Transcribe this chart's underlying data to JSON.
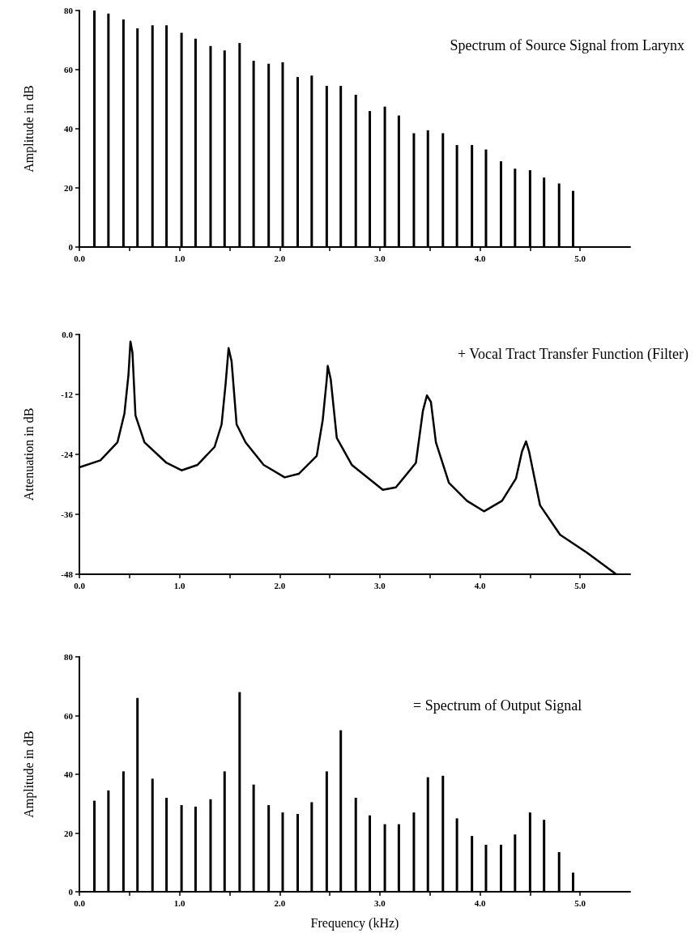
{
  "chart_data": [
    {
      "type": "bar",
      "title": "Spectrum of Source Signal from Larynx",
      "ylabel": "Amplitude in dB",
      "color": "#000000",
      "grid": false,
      "x": [
        0.15,
        0.29,
        0.44,
        0.58,
        0.73,
        0.87,
        1.02,
        1.16,
        1.31,
        1.45,
        1.6,
        1.74,
        1.89,
        2.03,
        2.18,
        2.32,
        2.47,
        2.61,
        2.76,
        2.9,
        3.05,
        3.19,
        3.34,
        3.48,
        3.63,
        3.77,
        3.92,
        4.06,
        4.21,
        4.35,
        4.5,
        4.64,
        4.79,
        4.93
      ],
      "values": [
        80,
        79,
        77,
        74,
        75,
        75,
        72.5,
        70.5,
        68,
        66.5,
        69,
        63,
        62,
        62.5,
        57.5,
        58,
        54.5,
        54.5,
        51.5,
        46,
        47.5,
        44.5,
        38.5,
        39.5,
        38.5,
        34.5,
        34.5,
        33,
        29,
        26.5,
        26,
        23.5,
        21.5,
        19
      ],
      "xlim": [
        0,
        5.5
      ],
      "xticks": [
        {
          "value": 0,
          "label": "0.0"
        },
        {
          "value": 0.5,
          "label": null
        },
        {
          "value": 1,
          "label": "1.0"
        },
        {
          "value": 1.5,
          "label": null
        },
        {
          "value": 2,
          "label": "2.0"
        },
        {
          "value": 2.5,
          "label": null
        },
        {
          "value": 3,
          "label": "3.0"
        },
        {
          "value": 3.5,
          "label": null
        },
        {
          "value": 4,
          "label": "4.0"
        },
        {
          "value": 4.5,
          "label": null
        },
        {
          "value": 5,
          "label": "5.0"
        }
      ],
      "ylim": [
        0,
        80
      ],
      "yticks": [
        0,
        20,
        40,
        60,
        80
      ]
    },
    {
      "type": "line",
      "title": "+ Vocal Tract Transfer Function (Filter)",
      "ylabel": "Attenuation in dB",
      "color": "#000000",
      "grid": false,
      "marker": "none",
      "line_style": "solid",
      "x": [
        0,
        0.21,
        0.38,
        0.45,
        0.49,
        0.51,
        0.53,
        0.56,
        0.65,
        0.87,
        1.02,
        1.18,
        1.35,
        1.42,
        1.46,
        1.49,
        1.52,
        1.57,
        1.66,
        1.84,
        2.05,
        2.19,
        2.37,
        2.43,
        2.47,
        2.48,
        2.51,
        2.57,
        2.72,
        3.03,
        3.16,
        3.36,
        3.43,
        3.47,
        3.51,
        3.56,
        3.69,
        3.87,
        4.04,
        4.22,
        4.36,
        4.42,
        4.46,
        4.49,
        4.6,
        4.8,
        5.07,
        5.36
      ],
      "values": [
        -26.6,
        -25.2,
        -21.6,
        -15.8,
        -8.1,
        -1.4,
        -3.6,
        -16.2,
        -21.6,
        -25.7,
        -27.2,
        -26.1,
        -22.5,
        -18,
        -9.9,
        -2.7,
        -5.4,
        -18,
        -21.6,
        -26.1,
        -28.6,
        -27.9,
        -24.3,
        -17.1,
        -9,
        -6.3,
        -9,
        -20.7,
        -26.1,
        -31.1,
        -30.6,
        -25.7,
        -15.3,
        -12.2,
        -13.5,
        -21.6,
        -29.7,
        -33.3,
        -35.4,
        -33.3,
        -28.8,
        -23.4,
        -21.4,
        -23.4,
        -34.2,
        -40.1,
        -43.7,
        -48
      ],
      "xlim": [
        0,
        5.5
      ],
      "xticks": [
        {
          "value": 0,
          "label": "0.0"
        },
        {
          "value": 0.5,
          "label": null
        },
        {
          "value": 1,
          "label": "1.0"
        },
        {
          "value": 1.5,
          "label": null
        },
        {
          "value": 2,
          "label": "2.0"
        },
        {
          "value": 2.5,
          "label": null
        },
        {
          "value": 3,
          "label": "3.0"
        },
        {
          "value": 3.5,
          "label": null
        },
        {
          "value": 4,
          "label": "4.0"
        },
        {
          "value": 4.5,
          "label": null
        },
        {
          "value": 5,
          "label": "5.0"
        }
      ],
      "ylim": [
        -48,
        0
      ],
      "yticks": [
        {
          "value": 0,
          "label": "0.0"
        },
        -12,
        -24,
        -36,
        -48
      ]
    },
    {
      "type": "bar",
      "title": "= Spectrum of Output Signal",
      "ylabel": "Amplitude in dB",
      "xlabel": "Frequency (kHz)",
      "color": "#000000",
      "grid": false,
      "x": [
        0.15,
        0.29,
        0.44,
        0.58,
        0.73,
        0.87,
        1.02,
        1.16,
        1.31,
        1.45,
        1.6,
        1.74,
        1.89,
        2.03,
        2.18,
        2.32,
        2.47,
        2.61,
        2.76,
        2.9,
        3.05,
        3.19,
        3.34,
        3.48,
        3.63,
        3.77,
        3.92,
        4.06,
        4.21,
        4.35,
        4.5,
        4.64,
        4.79,
        4.93
      ],
      "values": [
        31,
        34.5,
        41,
        66,
        38.5,
        32,
        29.5,
        29,
        31.5,
        41,
        68,
        36.5,
        29.5,
        27,
        26.5,
        30.5,
        41,
        55,
        32,
        26,
        23,
        23,
        27,
        39,
        39.5,
        25,
        19,
        16,
        16,
        19.5,
        27,
        24.5,
        13.5,
        6.5
      ],
      "xlim": [
        0,
        5.5
      ],
      "xticks": [
        {
          "value": 0,
          "label": "0.0"
        },
        {
          "value": 0.5,
          "label": null
        },
        {
          "value": 1,
          "label": "1.0"
        },
        {
          "value": 1.5,
          "label": null
        },
        {
          "value": 2,
          "label": "2.0"
        },
        {
          "value": 2.5,
          "label": null
        },
        {
          "value": 3,
          "label": "3.0"
        },
        {
          "value": 3.5,
          "label": null
        },
        {
          "value": 4,
          "label": "4.0"
        },
        {
          "value": 4.5,
          "label": null
        },
        {
          "value": 5,
          "label": "5.0"
        }
      ],
      "ylim": [
        0,
        80
      ],
      "yticks": [
        0,
        20,
        40,
        60,
        80
      ]
    }
  ]
}
